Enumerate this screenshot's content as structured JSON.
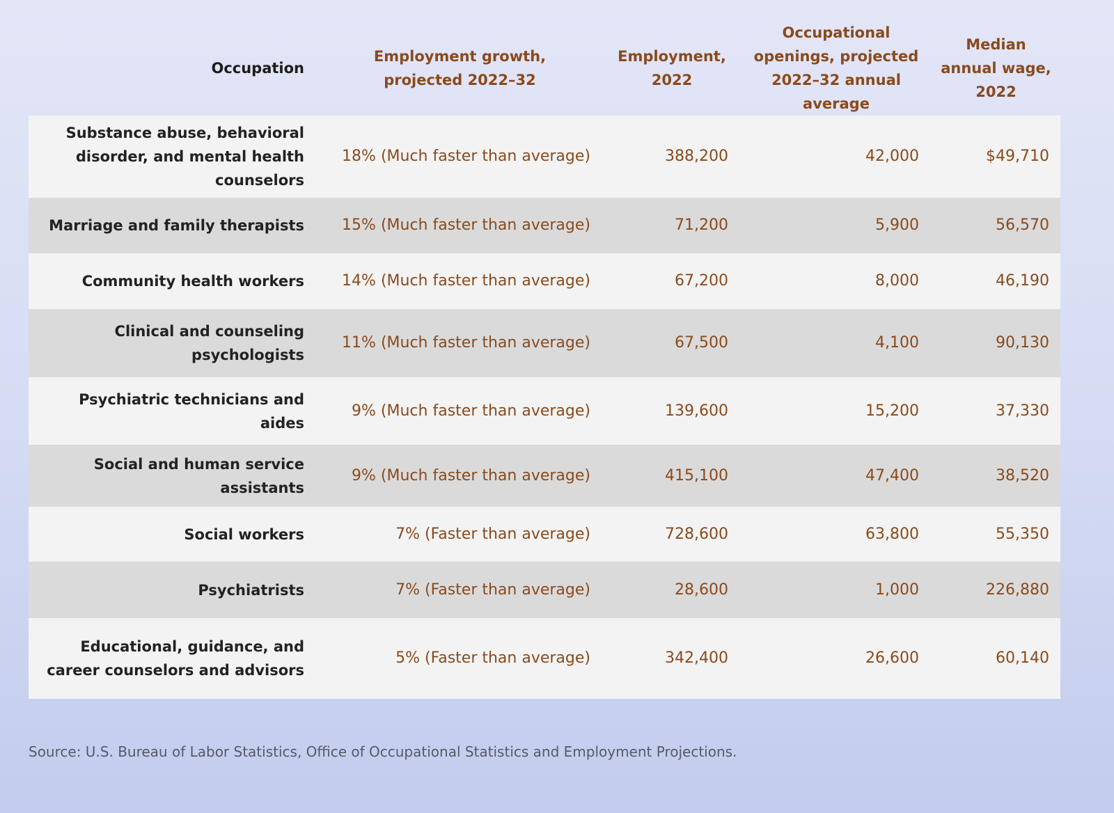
{
  "headers": {
    "occupation": "Occupation",
    "growth": "Employment growth, projected 2022–32",
    "employment": "Employment, 2022",
    "openings": "Occupational openings, projected 2022–32 annual average",
    "wage": "Median annual wage, 2022"
  },
  "rows": [
    {
      "occupation": "Substance abuse, behavioral disorder, and mental health counselors",
      "growth": "18% (Much faster than average)",
      "employment": "388,200",
      "openings": "42,000",
      "wage": "$49,710"
    },
    {
      "occupation": "Marriage and family therapists",
      "growth": "15% (Much faster than average)",
      "employment": "71,200",
      "openings": "5,900",
      "wage": "56,570"
    },
    {
      "occupation": "Community health workers",
      "growth": "14% (Much faster than average)",
      "employment": "67,200",
      "openings": "8,000",
      "wage": "46,190"
    },
    {
      "occupation": "Clinical and counseling psychologists",
      "growth": "11% (Much faster than average)",
      "employment": "67,500",
      "openings": "4,100",
      "wage": "90,130"
    },
    {
      "occupation": "Psychiatric technicians and aides",
      "growth": "9% (Much faster than average)",
      "employment": "139,600",
      "openings": "15,200",
      "wage": "37,330"
    },
    {
      "occupation": "Social and human service assistants",
      "growth": "9% (Much faster than average)",
      "employment": "415,100",
      "openings": "47,400",
      "wage": "38,520"
    },
    {
      "occupation": "Social workers",
      "growth": "7% (Faster than average)",
      "employment": "728,600",
      "openings": "63,800",
      "wage": "55,350"
    },
    {
      "occupation": "Psychiatrists",
      "growth": "7% (Faster than average)",
      "employment": "28,600",
      "openings": "1,000",
      "wage": "226,880"
    },
    {
      "occupation": "Educational, guidance, and career counselors and advisors",
      "growth": "5% (Faster than average)",
      "employment": "342,400",
      "openings": "26,600",
      "wage": "60,140"
    }
  ],
  "source": "Source: U.S. Bureau of Labor Statistics, Office of Occupational Statistics and Employment Projections."
}
